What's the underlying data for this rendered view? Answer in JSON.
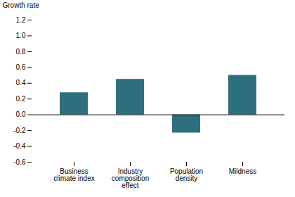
{
  "chart_data": {
    "type": "bar",
    "categories": [
      "Business\nclimate index",
      "Industry\ncomposition\neffect",
      "Population\ndensity",
      "Mildness"
    ],
    "values": [
      0.28,
      0.45,
      -0.23,
      0.5
    ],
    "color": "#2e6f7e",
    "ylabel": "Growth rate",
    "ylim": [
      -0.6,
      1.2
    ],
    "yticks": [
      -0.6,
      -0.4,
      -0.2,
      {
        "value": 0,
        "label": "0.0"
      },
      0.2,
      0.4,
      0.6,
      0.8,
      {
        "value": 1,
        "label": "1.0"
      },
      1.2
    ],
    "grid": false
  }
}
